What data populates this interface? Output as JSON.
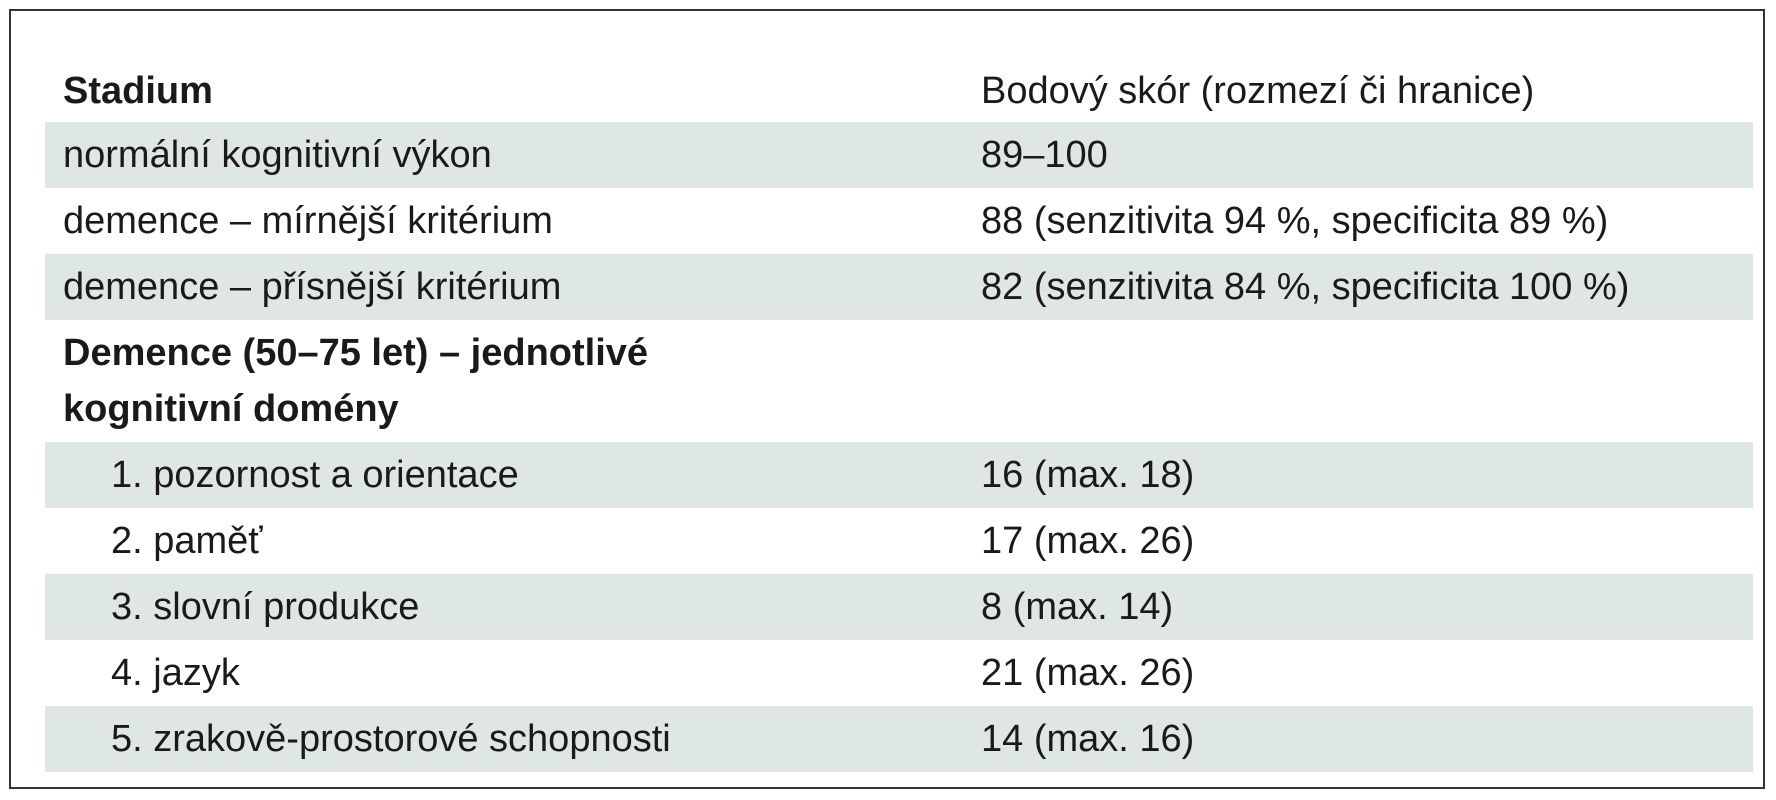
{
  "table": {
    "header": [
      "Stadium",
      "Bodový skór (rozmezí či hranice)"
    ],
    "rows": [
      [
        "normální kognitivní výkon",
        "89–100"
      ],
      [
        "demence – mírnější kritérium",
        "88 (senzitivita 94 %, specificita 89 %)"
      ],
      [
        "demence – přísnější kritérium",
        "82 (senzitivita 84 %, specificita 100 %)"
      ],
      [
        "Demence (50–75 let) – jednotlivé kognitivní domény"
      ],
      [
        "1. pozornost a orientace",
        "16 (max. 18)"
      ],
      [
        "2. paměť",
        "17 (max. 26)"
      ],
      [
        "3. slovní produkce",
        "8 (max. 14)"
      ],
      [
        "4. jazyk",
        "21 (max. 26)"
      ],
      [
        "5. zrakově-prostorové schopnosti",
        "14 (max. 16)"
      ]
    ]
  }
}
